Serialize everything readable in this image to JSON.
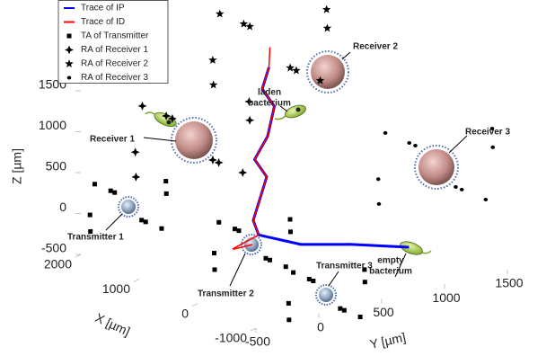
{
  "chart_data": {
    "type": "scatter3d",
    "xlabel": "X [µm]",
    "ylabel": "Y [µm]",
    "zlabel": "Z [µm]",
    "xlim": [
      -1000,
      2000
    ],
    "ylim": [
      -500,
      1500
    ],
    "zlim": [
      -500,
      1500
    ],
    "xticks": [
      -1000,
      0,
      1000,
      2000
    ],
    "yticks": [
      -500,
      0,
      500,
      1000,
      1500
    ],
    "zticks": [
      -500,
      0,
      500,
      1000,
      1500
    ],
    "legend": "top-left",
    "series": [
      {
        "name": "Trace of IP",
        "color": "#0000ff",
        "marker": "line",
        "x": [
          -240,
          200,
          600,
          1000,
          1000,
          1200,
          1300,
          1400,
          1500,
          1600,
          1700,
          1800,
          1900
        ],
        "y": [
          1070,
          800,
          600,
          450,
          450,
          500,
          600,
          700,
          650,
          800,
          900,
          850,
          950
        ],
        "z": [
          -300,
          -300,
          -350,
          -300,
          -300,
          -200,
          0,
          200,
          400,
          600,
          900,
          1100,
          1300
        ]
      },
      {
        "name": "Trace of ID",
        "color": "#ff0000",
        "marker": "line",
        "x": [
          1000,
          1100,
          900,
          1000,
          1200,
          1300,
          1400,
          1500,
          1600,
          1700,
          1800,
          1900,
          1990
        ],
        "y": [
          400,
          300,
          200,
          450,
          500,
          600,
          700,
          650,
          800,
          900,
          850,
          950,
          1000
        ],
        "z": [
          -400,
          -450,
          -350,
          -300,
          -200,
          0,
          200,
          400,
          600,
          900,
          1100,
          1300,
          1500
        ]
      },
      {
        "name": "TA of Transmitter",
        "color": "#000000",
        "marker": "square",
        "x": [
          2200,
          1600,
          1900,
          1900,
          2100,
          1700,
          2150,
          1650,
          2000,
          1800,
          1300,
          700,
          1000,
          1000,
          1200,
          800,
          1250,
          750,
          1100,
          900,
          -470,
          -1070,
          -770,
          -770,
          -570,
          -970,
          -520,
          -1020,
          -670,
          -870
        ],
        "y": [
          -170,
          -170,
          130,
          -470,
          30,
          -370,
          -320,
          -20,
          180,
          -520,
          400,
          400,
          700,
          100,
          600,
          200,
          250,
          550,
          750,
          50,
          170,
          170,
          470,
          -130,
          370,
          -30,
          20,
          320,
          520,
          -180
        ],
        "z": [
          100,
          -100,
          200,
          -200,
          -300,
          300,
          250,
          -250,
          0,
          50,
          -300,
          -500,
          -200,
          -600,
          -700,
          -100,
          -150,
          -650,
          -400,
          -350,
          -300,
          -500,
          -200,
          -600,
          -700,
          -100,
          -150,
          -650,
          -400,
          -350
        ]
      },
      {
        "name": "RA of Receiver 1",
        "color": "#000000",
        "marker": "plus",
        "x": [
          1570,
          670,
          1120,
          1120,
          1420,
          820,
          1495,
          745,
          1270,
          970
        ],
        "y": [
          -20,
          -20,
          430,
          -470,
          280,
          -320,
          -245,
          205,
          505,
          -545
        ],
        "z": [
          1150,
          850,
          1300,
          700,
          550,
          1450,
          1375,
          625,
          1000,
          1075
        ]
      },
      {
        "name": "RA of Receiver 2",
        "color": "#000000",
        "marker": "star",
        "x": [
          2440,
          1540,
          1990,
          1990,
          2290,
          1690,
          2365,
          1615,
          2140,
          1840
        ],
        "y": [
          1000,
          1000,
          1450,
          550,
          1300,
          700,
          775,
          1225,
          1525,
          475
        ],
        "z": [
          1650,
          1350,
          1800,
          1200,
          1050,
          1950,
          1875,
          1125,
          1500,
          1575
        ]
      },
      {
        "name": "RA of Receiver 3",
        "color": "#000000",
        "marker": "dot",
        "x": [
          455,
          -445,
          5,
          5,
          305,
          -295,
          380,
          -370,
          155,
          -145
        ],
        "y": [
          1395,
          1395,
          1845,
          945,
          1695,
          1095,
          1170,
          1620,
          1920,
          870
        ],
        "z": [
          650,
          350,
          800,
          200,
          50,
          950,
          875,
          125,
          500,
          575
        ]
      }
    ],
    "annotations": [
      "Receiver 1",
      "Receiver 2",
      "Receiver 3",
      "Transmitter 1",
      "Transmitter 2",
      "Transmitter 3",
      "laden",
      "bacterium",
      "empty",
      "bacterium"
    ]
  }
}
